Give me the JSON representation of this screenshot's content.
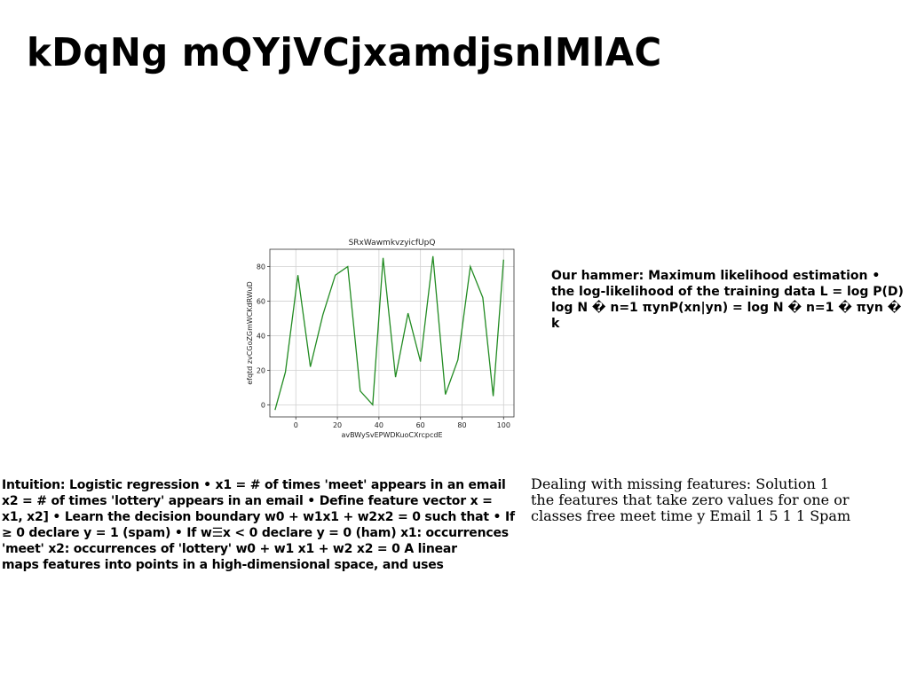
{
  "title": "kDqNg mQYjVCjxamdjsnlMlAC",
  "text_blocks": {
    "right_top": "Our hammer: Maximum likelihood estimation •\nthe log-likelihood of the training data L = log P(D)\nlog N � n=1 πynP(xn|yn) = log N � n=1 � πyn � k",
    "left_bottom": "Intuition: Logistic regression • x1 = # of times 'meet' appears in an email\nx2 = # of times 'lottery' appears in an email • Define feature vector x =\nx1, x2] • Learn the decision boundary w0 + w1x1 + w2x2 = 0 such that • If\n≥ 0 declare y = 1 (spam) • If w☰x < 0 declare y = 0 (ham) x1: occurrences\n'meet' x2: occurrences of 'lottery' w0 + w1 x1 + w2 x2 = 0 A linear\nmaps features into points in a high-dimensional space, and uses",
    "right_bottom": "Dealing with missing features: Solution 1\nthe features that take zero values for one or\nclasses free meet time y Email 1 5 1 1 Spam"
  },
  "chart_data": {
    "type": "line",
    "title": "SRxWawmkvzyicfUpQ",
    "xlabel": "avBWySvEPWDKuoCXrcpcdE",
    "ylabel": "efqtd zvCGoZGmWCKdRWuD",
    "x": [
      -10,
      -5,
      1,
      7,
      13,
      19,
      25,
      31,
      37,
      42,
      48,
      54,
      60,
      66,
      72,
      78,
      84,
      90,
      95,
      100
    ],
    "series": [
      {
        "values": [
          -3,
          19,
          75,
          22,
          52,
          75,
          80,
          8,
          0,
          85,
          16,
          53,
          25,
          86,
          6,
          26,
          80,
          62,
          5,
          84
        ]
      }
    ],
    "xlim": [
      -12.5,
      105
    ],
    "ylim": [
      -7,
      90
    ],
    "xticks": [
      0,
      20,
      40,
      60,
      80,
      100
    ],
    "yticks": [
      0,
      20,
      40,
      60,
      80
    ],
    "grid": true,
    "line_color": "#228b22"
  }
}
